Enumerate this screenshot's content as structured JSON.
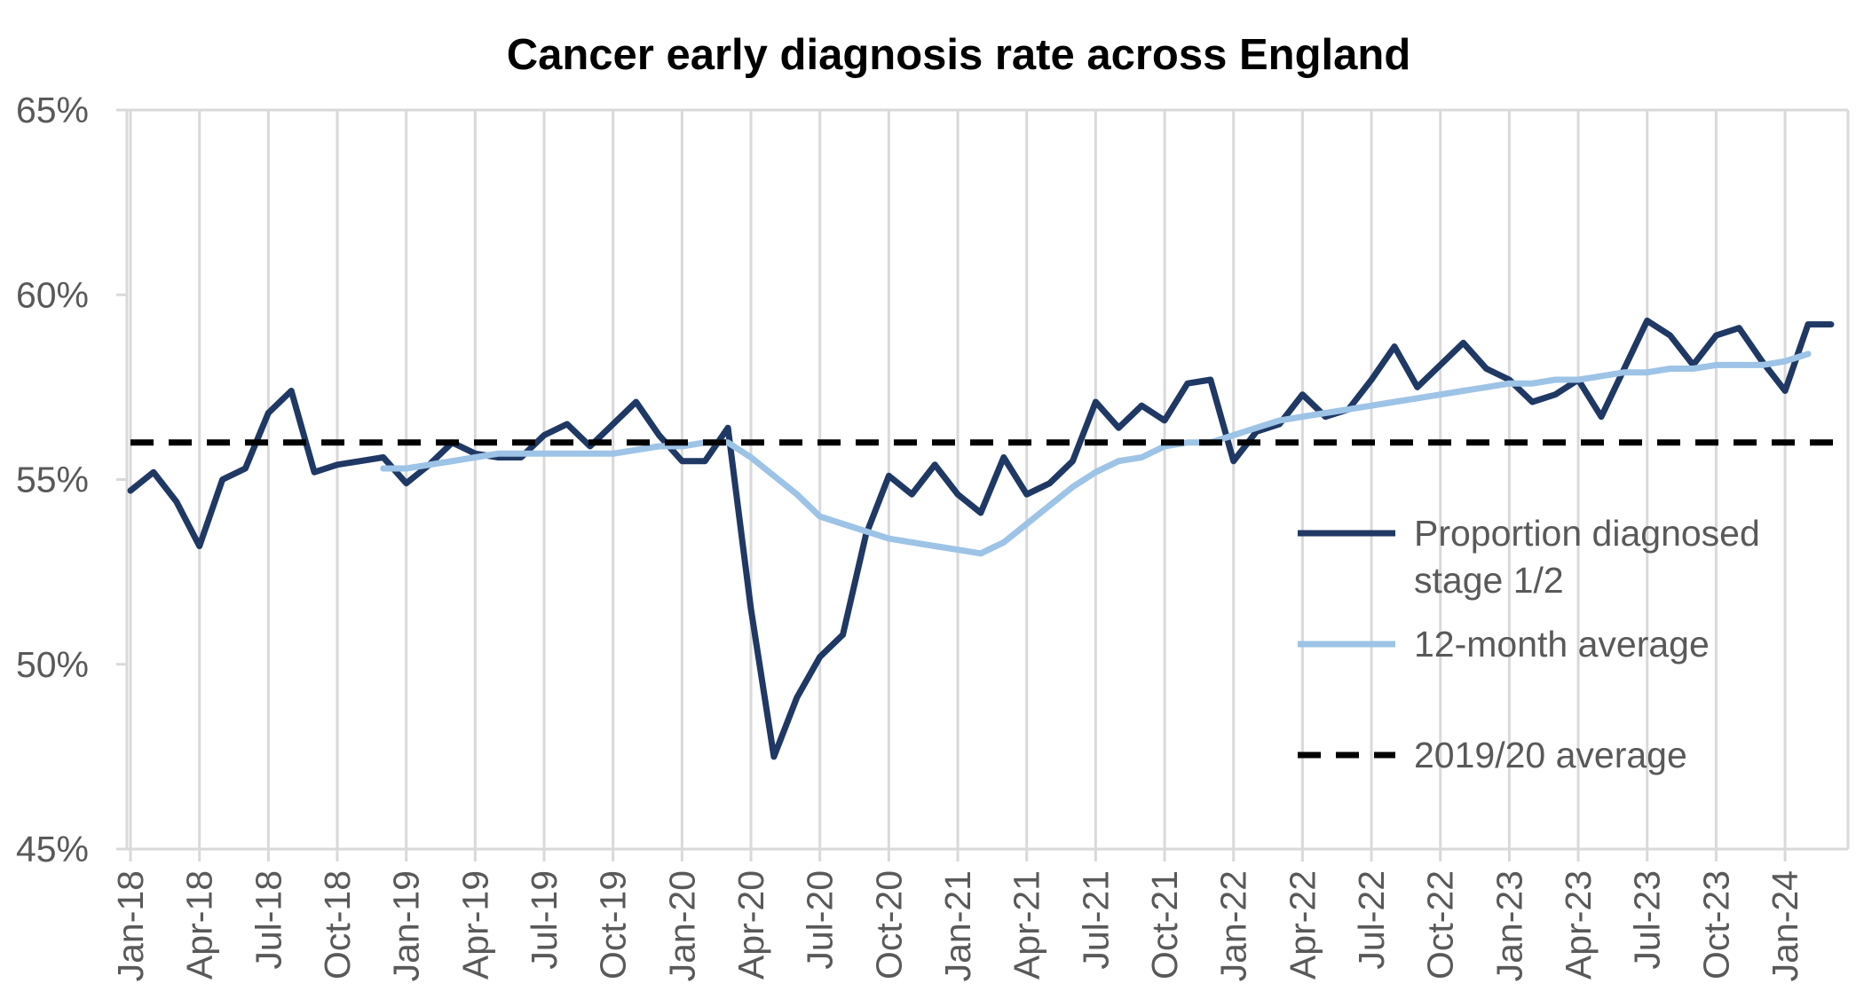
{
  "chart_data": {
    "type": "line",
    "title": "Cancer early diagnosis rate across England",
    "xlabel": "",
    "ylabel": "",
    "ylim": [
      45,
      65
    ],
    "y_ticks": [
      45,
      50,
      55,
      60,
      65
    ],
    "y_tick_labels": [
      "45%",
      "50%",
      "55%",
      "60%",
      "65%"
    ],
    "x_tick_labels": [
      "Jan-18",
      "Apr-18",
      "Jul-18",
      "Oct-18",
      "Jan-19",
      "Apr-19",
      "Jul-19",
      "Oct-19",
      "Jan-20",
      "Apr-20",
      "Jul-20",
      "Oct-20",
      "Jan-21",
      "Apr-21",
      "Jul-21",
      "Oct-21",
      "Jan-22",
      "Apr-22",
      "Jul-22",
      "Oct-22",
      "Jan-23",
      "Apr-23",
      "Jul-23",
      "Oct-23",
      "Jan-24"
    ],
    "x_tick_every": 3,
    "grid": "vertical",
    "legend_position": "right",
    "series": [
      {
        "name": "Proportion diagnosed stage 1/2",
        "legend_lines": [
          "Proportion diagnosed",
          "stage 1/2"
        ],
        "color": "#1f3864",
        "style": "solid",
        "start_index": 0,
        "values": [
          54.7,
          55.2,
          54.4,
          53.2,
          55.0,
          55.3,
          56.8,
          57.4,
          55.2,
          55.4,
          55.5,
          55.6,
          54.9,
          55.4,
          56.0,
          55.7,
          55.6,
          55.6,
          56.2,
          56.5,
          55.9,
          56.5,
          57.1,
          56.2,
          55.5,
          55.5,
          56.4,
          51.5,
          47.5,
          49.1,
          50.2,
          50.8,
          53.5,
          55.1,
          54.6,
          55.4,
          54.6,
          54.1,
          55.6,
          54.6,
          54.9,
          55.5,
          57.1,
          56.4,
          57.0,
          56.6,
          57.6,
          57.7,
          55.5,
          56.3,
          56.5,
          57.3,
          56.7,
          56.9,
          57.7,
          58.6,
          57.5,
          58.1,
          58.7,
          58.0,
          57.7,
          57.1,
          57.3,
          57.7,
          56.7,
          58.0,
          59.3,
          58.9,
          58.1,
          58.9,
          59.1,
          58.2,
          57.4,
          59.2,
          59.2
        ]
      },
      {
        "name": "12-month average",
        "legend_lines": [
          "12-month average"
        ],
        "color": "#9dc3e6",
        "style": "solid",
        "start_index": 11,
        "values": [
          55.3,
          55.3,
          55.4,
          55.5,
          55.6,
          55.7,
          55.7,
          55.7,
          55.7,
          55.7,
          55.7,
          55.8,
          55.9,
          55.9,
          56.0,
          56.0,
          55.6,
          55.1,
          54.6,
          54.0,
          53.8,
          53.6,
          53.4,
          53.3,
          53.2,
          53.1,
          53.0,
          53.3,
          53.8,
          54.3,
          54.8,
          55.2,
          55.5,
          55.6,
          55.9,
          56.0,
          56.0,
          56.2,
          56.4,
          56.6,
          56.7,
          56.8,
          56.9,
          57.0,
          57.1,
          57.2,
          57.3,
          57.4,
          57.5,
          57.6,
          57.6,
          57.7,
          57.7,
          57.8,
          57.9,
          57.9,
          58.0,
          58.0,
          58.1,
          58.1,
          58.1,
          58.2,
          58.4
        ]
      },
      {
        "name": "2019/20 average",
        "legend_lines": [
          "2019/20 average"
        ],
        "color": "#000000",
        "style": "dashed",
        "constant": 56.0
      }
    ]
  }
}
